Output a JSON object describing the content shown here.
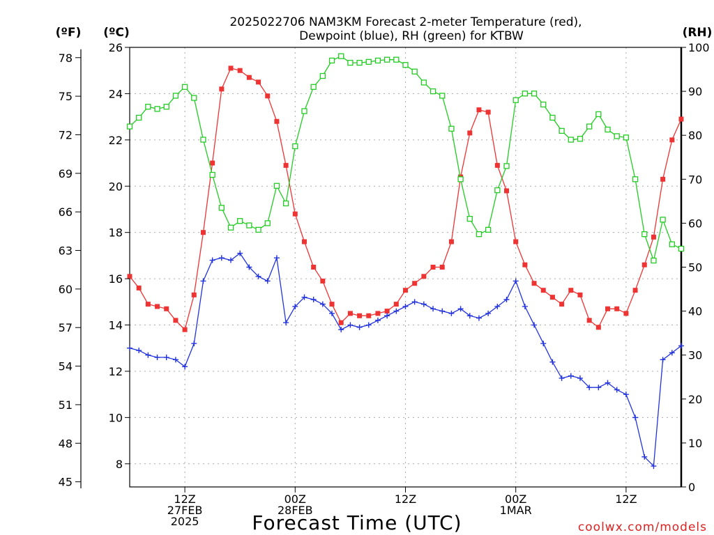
{
  "chart_data": {
    "type": "line",
    "title_line1": "2025022706 NAM3KM Forecast 2-meter Temperature (red),",
    "title_line2": "Dewpoint (blue), RH (green) for KTBW",
    "xlabel": "Forecast Time (UTC)",
    "credit": "coolwx.com/models",
    "left_axes": [
      {
        "unit_label": "(ºF)",
        "ticks": [
          "45",
          "48",
          "51",
          "54",
          "57",
          "60",
          "63",
          "66",
          "69",
          "72",
          "75",
          "78"
        ]
      },
      {
        "unit_label": "(ºC)",
        "ticks": [
          "8",
          "10",
          "12",
          "14",
          "16",
          "18",
          "20",
          "22",
          "24",
          "26"
        ]
      }
    ],
    "right_axis": {
      "unit_label": "(RH)",
      "ticks": [
        "0",
        "10",
        "20",
        "30",
        "40",
        "50",
        "60",
        "70",
        "80",
        "90",
        "100"
      ]
    },
    "ylim_celsius": [
      7.0,
      26.0
    ],
    "ylim_rh": [
      0,
      100
    ],
    "x_hours_range": [
      -6,
      54
    ],
    "x_ticks": [
      {
        "hour": 0,
        "lines": [
          "12Z",
          "27FEB",
          "2025"
        ]
      },
      {
        "hour": 12,
        "lines": [
          "00Z",
          "28FEB"
        ]
      },
      {
        "hour": 24,
        "lines": [
          "12Z"
        ]
      },
      {
        "hour": 36,
        "lines": [
          "00Z",
          "1MAR"
        ]
      },
      {
        "hour": 48,
        "lines": [
          "12Z"
        ]
      }
    ],
    "colors": {
      "temperature": "#ee3333",
      "dewpoint": "#2233dd",
      "rh": "#22cc22",
      "grid": "#aaaaaa"
    },
    "grid": true,
    "series": [
      {
        "name": "Temperature",
        "color": "#ee3333",
        "marker": "filled-square",
        "axis": "celsius",
        "x": [
          -6,
          -5,
          -4,
          -3,
          -2,
          -1,
          0,
          1,
          2,
          3,
          4,
          5,
          6,
          7,
          8,
          9,
          10,
          11,
          12,
          13,
          14,
          15,
          16,
          17,
          18,
          19,
          20,
          21,
          22,
          23,
          24,
          25,
          26,
          27,
          28,
          29,
          30,
          31,
          32,
          33,
          34,
          35,
          36,
          37,
          38,
          39,
          40,
          41,
          42,
          43,
          44,
          45,
          46,
          47,
          48,
          49,
          50,
          51,
          52,
          53,
          54
        ],
        "values": [
          16.1,
          15.6,
          14.9,
          14.8,
          14.7,
          14.2,
          13.8,
          15.3,
          18.0,
          21.0,
          24.2,
          25.1,
          25.0,
          24.7,
          24.5,
          23.9,
          22.8,
          20.9,
          18.8,
          17.6,
          16.5,
          15.9,
          14.9,
          14.1,
          14.5,
          14.4,
          14.4,
          14.5,
          14.6,
          14.9,
          15.5,
          15.8,
          16.1,
          16.5,
          16.5,
          17.6,
          20.4,
          22.3,
          23.3,
          23.2,
          20.9,
          19.8,
          17.6,
          16.6,
          15.8,
          15.5,
          15.2,
          14.9,
          15.5,
          15.3,
          14.2,
          13.9,
          14.7,
          14.7,
          14.5,
          15.5,
          16.6,
          17.8,
          20.3,
          22.0,
          22.9
        ]
      },
      {
        "name": "Dewpoint",
        "color": "#2233dd",
        "marker": "plus",
        "axis": "celsius",
        "x": [
          -6,
          -5,
          -4,
          -3,
          -2,
          -1,
          0,
          1,
          2,
          3,
          4,
          5,
          6,
          7,
          8,
          9,
          10,
          11,
          12,
          13,
          14,
          15,
          16,
          17,
          18,
          19,
          20,
          21,
          22,
          23,
          24,
          25,
          26,
          27,
          28,
          29,
          30,
          31,
          32,
          33,
          34,
          35,
          36,
          37,
          38,
          39,
          40,
          41,
          42,
          43,
          44,
          45,
          46,
          47,
          48,
          49,
          50,
          51,
          52,
          53,
          54
        ],
        "values": [
          13.0,
          12.9,
          12.7,
          12.6,
          12.6,
          12.5,
          12.2,
          13.2,
          15.9,
          16.8,
          16.9,
          16.8,
          17.1,
          16.5,
          16.1,
          15.9,
          16.9,
          14.1,
          14.8,
          15.2,
          15.1,
          14.9,
          14.5,
          13.8,
          14.0,
          13.9,
          14.0,
          14.2,
          14.4,
          14.6,
          14.8,
          15.0,
          14.9,
          14.7,
          14.6,
          14.5,
          14.7,
          14.4,
          14.3,
          14.5,
          14.8,
          15.1,
          15.9,
          14.8,
          14.0,
          13.2,
          12.4,
          11.7,
          11.8,
          11.7,
          11.3,
          11.3,
          11.5,
          11.2,
          11.0,
          10.0,
          8.3,
          7.9,
          12.5,
          12.8,
          13.1
        ]
      },
      {
        "name": "RH",
        "color": "#22cc22",
        "marker": "open-square",
        "axis": "rh",
        "x": [
          -6,
          -5,
          -4,
          -3,
          -2,
          -1,
          0,
          1,
          2,
          3,
          4,
          5,
          6,
          7,
          8,
          9,
          10,
          11,
          12,
          13,
          14,
          15,
          16,
          17,
          18,
          19,
          20,
          21,
          22,
          23,
          24,
          25,
          26,
          27,
          28,
          29,
          30,
          31,
          32,
          33,
          34,
          35,
          36,
          37,
          38,
          39,
          40,
          41,
          42,
          43,
          44,
          45,
          46,
          47,
          48,
          49,
          50,
          51,
          52,
          53,
          54
        ],
        "values": [
          82,
          84,
          86.5,
          86,
          86.5,
          89,
          91,
          88.5,
          79,
          71,
          63.5,
          59,
          60.5,
          59.5,
          58.5,
          60,
          68.5,
          64.5,
          77.5,
          85.5,
          91,
          93.5,
          97,
          98,
          96.5,
          96.5,
          96.7,
          97,
          97.2,
          97.2,
          96,
          94.5,
          92,
          90,
          89,
          81.5,
          70,
          61,
          57.5,
          58.5,
          67.5,
          73,
          88,
          89.5,
          89.5,
          87,
          84,
          81,
          79,
          79.2,
          82,
          84.8,
          81.3,
          79.8,
          79.5,
          70,
          57.5,
          51.5,
          60.8,
          55.2,
          54.2
        ]
      }
    ]
  }
}
